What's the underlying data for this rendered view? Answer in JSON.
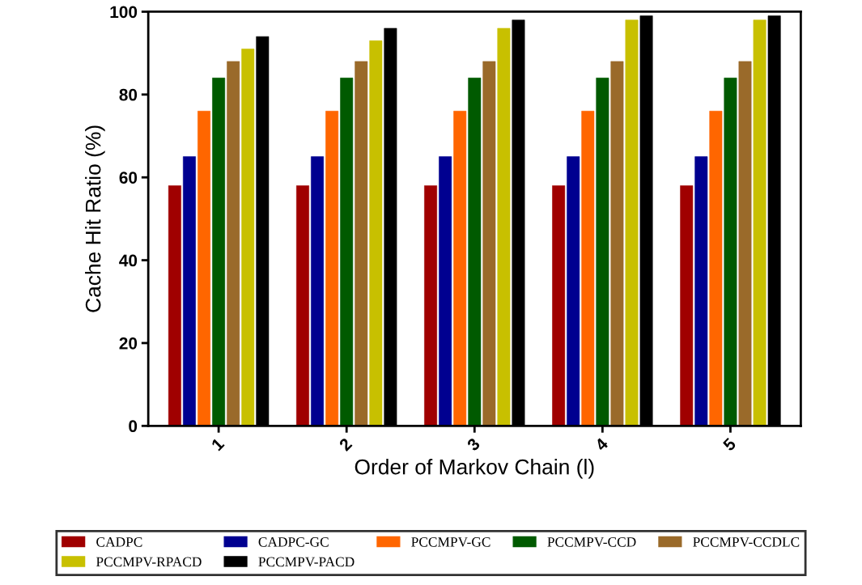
{
  "chart_data": {
    "type": "bar",
    "xlabel": "Order of Markov Chain (l)",
    "ylabel": "Cache Hit Ratio (%)",
    "categories": [
      "1",
      "2",
      "3",
      "4",
      "5"
    ],
    "series": [
      {
        "name": "CADPC",
        "color": "#a00000",
        "values": [
          58,
          58,
          58,
          58,
          58
        ]
      },
      {
        "name": "CADPC-GC",
        "color": "#000090",
        "values": [
          65,
          65,
          65,
          65,
          65
        ]
      },
      {
        "name": "PCCMPV-GC",
        "color": "#ff6600",
        "values": [
          76,
          76,
          76,
          76,
          76
        ]
      },
      {
        "name": "PCCMPV-CCD",
        "color": "#005a00",
        "values": [
          84,
          84,
          84,
          84,
          84
        ]
      },
      {
        "name": "PCCMPV-CCDLC",
        "color": "#9a6a2a",
        "values": [
          88,
          88,
          88,
          88,
          88
        ]
      },
      {
        "name": "PCCMPV-RPACD",
        "color": "#c8c000",
        "values": [
          91,
          93,
          96,
          98,
          98
        ]
      },
      {
        "name": "PCCMPV-PACD",
        "color": "#000000",
        "values": [
          94,
          96,
          98,
          99,
          99
        ]
      }
    ],
    "ylim": [
      0,
      100
    ],
    "yticks": [
      0,
      20,
      40,
      60,
      80,
      100
    ],
    "grid": false,
    "legend": "bottom"
  }
}
